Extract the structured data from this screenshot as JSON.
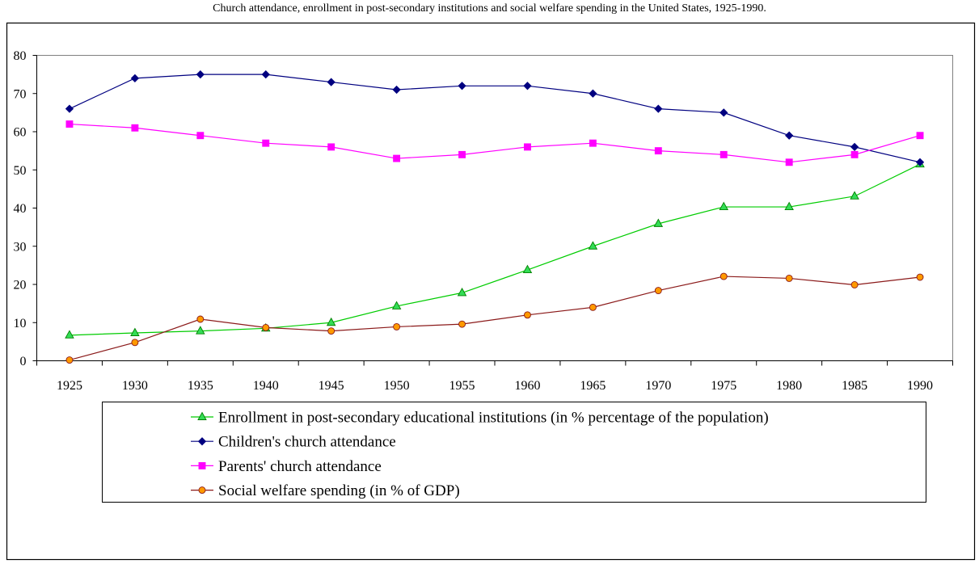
{
  "chart_data": {
    "type": "line",
    "title": "Church attendance, enrollment in post-secondary institutions and social welfare spending in the United States, 1925-1990.",
    "xlabel": "",
    "ylabel": "",
    "ylim": [
      0,
      80
    ],
    "yticks": [
      "0",
      "10",
      "20",
      "30",
      "40",
      "50",
      "60",
      "70",
      "80"
    ],
    "categories": [
      "1925",
      "1930",
      "1935",
      "1940",
      "1945",
      "1950",
      "1955",
      "1960",
      "1965",
      "1970",
      "1975",
      "1980",
      "1985",
      "1990"
    ],
    "grid": false,
    "legend_position": "bottom",
    "series": [
      {
        "name": "Enrollment in post-secondary educational institutions (in % percentage of the population)",
        "color": "#00cc00",
        "fill": "#33dd55",
        "marker": "triangle",
        "values": [
          6.7,
          7.3,
          7.8,
          8.5,
          10,
          14.3,
          17.8,
          23.8,
          30,
          35.9,
          40.3,
          40.3,
          43.1,
          51.5
        ]
      },
      {
        "name": "Children's church attendance",
        "color": "#000080",
        "fill": "#000080",
        "marker": "diamond",
        "values": [
          66,
          74,
          75,
          75,
          73,
          71,
          72,
          72,
          70,
          66,
          65,
          59,
          56,
          52
        ]
      },
      {
        "name": "Parents' church attendance",
        "color": "#ff00ff",
        "fill": "#ff00ff",
        "marker": "square",
        "values": [
          62,
          61,
          59,
          57,
          56,
          53,
          54,
          56,
          57,
          55,
          54,
          52,
          54,
          59
        ]
      },
      {
        "name": "Social welfare spending (in % of GDP)",
        "color": "#8b1a1a",
        "fill": "#ff9900",
        "marker": "circle",
        "values": [
          0.2,
          4.8,
          10.9,
          8.7,
          7.8,
          8.9,
          9.6,
          12,
          14,
          18.4,
          22.1,
          21.6,
          19.9,
          21.9
        ]
      }
    ]
  }
}
